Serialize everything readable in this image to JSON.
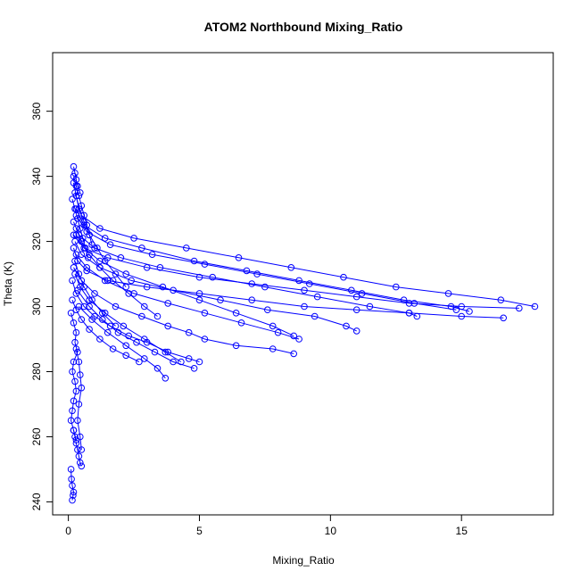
{
  "chart_data": {
    "type": "scatter",
    "title": "ATOM2 Northbound Mixing_Ratio",
    "xlabel": "Mixing_Ratio",
    "ylabel": "Theta (K)",
    "xlim": [
      -0.6,
      18.5
    ],
    "ylim": [
      236,
      378
    ],
    "xticks": [
      0,
      5,
      10,
      15
    ],
    "yticks": [
      240,
      260,
      280,
      300,
      320,
      340,
      360
    ],
    "grid": false,
    "legend": "none",
    "color": "#0000ff",
    "marker": "open-circle",
    "series": [
      {
        "x": [
          0.2,
          0.25,
          0.3,
          0.35,
          0.45
        ],
        "y": [
          343,
          341,
          339,
          337,
          335
        ]
      },
      {
        "x": [
          0.25,
          0.5,
          1.2,
          2.5,
          4.5,
          6.5,
          8.5,
          10.5,
          12.5,
          14.5,
          16.5,
          17.8
        ],
        "y": [
          335,
          328,
          324,
          321,
          318,
          315,
          312,
          309,
          306,
          304,
          302,
          300
        ]
      },
      {
        "x": [
          0.3,
          0.6,
          1.4,
          2.8,
          4.8,
          6.8,
          8.8,
          10.8,
          12.8,
          14.6,
          15.3
        ],
        "y": [
          330,
          325,
          321,
          318,
          314,
          311,
          308,
          305,
          302,
          300,
          298.5
        ]
      },
      {
        "x": [
          0.2,
          0.4,
          1.0,
          2.0,
          3.5,
          5.5,
          7.5,
          9.5,
          11.5,
          13.0,
          13.3
        ],
        "y": [
          326,
          322,
          318,
          315,
          312,
          309,
          306,
          303,
          300,
          298,
          297
        ]
      },
      {
        "x": [
          0.25,
          0.5,
          1.2,
          2.4,
          4.0,
          5.8,
          7.6,
          9.4,
          10.6,
          11.0
        ],
        "y": [
          320,
          316,
          312,
          308,
          305,
          302,
          299,
          297,
          294,
          292.5
        ]
      },
      {
        "x": [
          0.3,
          0.7,
          1.4,
          2.5,
          3.8,
          5.2,
          6.6,
          8.0,
          8.8
        ],
        "y": [
          316,
          312,
          308,
          304,
          301,
          298,
          295,
          292,
          290
        ]
      },
      {
        "x": [
          0.2,
          0.5,
          1.0,
          1.8,
          2.8,
          3.8,
          4.6,
          5.2,
          6.4,
          7.8,
          8.6
        ],
        "y": [
          312,
          308,
          304,
          300,
          297,
          294,
          292,
          290,
          288,
          287,
          285.5
        ]
      },
      {
        "x": [
          0.35,
          0.8,
          1.3,
          1.9,
          2.6,
          3.3,
          4.0,
          4.8
        ],
        "y": [
          305,
          300,
          296,
          292,
          289,
          286,
          283,
          281
        ]
      },
      {
        "x": [
          0.4,
          0.9,
          1.5,
          2.2,
          2.9,
          3.4,
          3.7
        ],
        "y": [
          300,
          296,
          292,
          288,
          284,
          281,
          278
        ]
      },
      {
        "x": [
          0.15,
          0.3,
          0.6,
          1.0,
          1.6,
          2.3,
          3.0,
          3.8,
          4.6,
          5.0
        ],
        "y": [
          308,
          304,
          300,
          297,
          294,
          291,
          289,
          286,
          284,
          283
        ]
      },
      {
        "x": [
          0.2,
          0.35,
          0.7,
          1.5,
          3.0,
          5.0,
          7.0,
          9.0,
          11.0,
          13.0,
          15.0,
          16.6
        ],
        "y": [
          318,
          314,
          311,
          308,
          306,
          304,
          302,
          300,
          299,
          298,
          297,
          296.5
        ]
      },
      {
        "x": [
          0.3,
          0.6,
          1.2,
          2.2,
          3.6,
          5.0,
          6.4,
          7.8,
          8.6
        ],
        "y": [
          322,
          318,
          314,
          310,
          306,
          302,
          298,
          294,
          291
        ]
      },
      {
        "x": [
          0.25,
          0.45,
          0.8,
          1.4,
          2.1,
          2.9,
          3.7,
          4.3
        ],
        "y": [
          310,
          306,
          302,
          298,
          294,
          290,
          286,
          283
        ]
      },
      {
        "x": [
          0.1,
          0.2,
          0.3,
          0.25,
          0.35,
          0.2,
          0.15,
          0.25,
          0.3,
          0.2,
          0.15,
          0.1,
          0.2,
          0.3
        ],
        "y": [
          298,
          295,
          292,
          289,
          286,
          283,
          280,
          277,
          274,
          271,
          268,
          265,
          262,
          259
        ]
      },
      {
        "x": [
          0.3,
          0.4,
          0.45,
          0.5,
          0.4,
          0.35,
          0.45,
          0.5
        ],
        "y": [
          287,
          283,
          279,
          275,
          270,
          265,
          260,
          256
        ]
      },
      {
        "x": [
          0.2,
          0.25,
          0.3,
          0.35,
          0.4,
          0.45,
          0.5
        ],
        "y": [
          262,
          260,
          258,
          256,
          254,
          252,
          251
        ]
      },
      {
        "x": [
          0.1,
          0.12,
          0.15,
          0.2,
          0.18,
          0.15
        ],
        "y": [
          250,
          247,
          245,
          243,
          242,
          240.5
        ]
      },
      {
        "x": [
          0.2,
          0.3,
          0.4,
          0.5,
          0.6,
          0.7,
          0.8,
          0.9
        ],
        "y": [
          340,
          337,
          334,
          331,
          328,
          325,
          322,
          319
        ]
      },
      {
        "x": [
          0.15,
          0.25,
          0.35,
          0.45,
          0.55,
          0.65,
          0.75
        ],
        "y": [
          333,
          330,
          327,
          324,
          321,
          318,
          315
        ]
      },
      {
        "x": [
          0.2,
          0.3,
          0.4,
          0.6,
          0.8,
          1.1,
          1.4,
          1.8,
          2.2
        ],
        "y": [
          338,
          334,
          330,
          326,
          322,
          318,
          314,
          310,
          306
        ]
      },
      {
        "x": [
          0.3,
          0.5,
          0.8,
          1.2,
          1.7,
          2.3,
          2.9,
          3.4
        ],
        "y": [
          324,
          320,
          316,
          312,
          308,
          304,
          300,
          297
        ]
      },
      {
        "x": [
          0.25,
          0.4,
          0.6,
          0.9,
          1.3,
          1.8
        ],
        "y": [
          314,
          310,
          306,
          302,
          298,
          294
        ]
      },
      {
        "x": [
          0.15,
          0.3,
          0.5,
          0.8,
          1.2,
          1.7,
          2.2,
          2.7
        ],
        "y": [
          302,
          299,
          296,
          293,
          290,
          287,
          285,
          283
        ]
      },
      {
        "x": [
          0.2,
          0.6,
          1.5,
          3.0,
          5.0,
          7.0,
          9.0,
          11.0,
          13.0,
          15.0,
          17.2
        ],
        "y": [
          322,
          318,
          315,
          312,
          309,
          307,
          305,
          303,
          301,
          300,
          299.5
        ]
      },
      {
        "x": [
          0.3,
          0.7,
          1.6,
          3.2,
          5.2,
          7.2,
          9.2,
          11.2,
          13.2,
          14.8
        ],
        "y": [
          328,
          323,
          319,
          316,
          313,
          310,
          307,
          304,
          301,
          299
        ]
      }
    ]
  }
}
